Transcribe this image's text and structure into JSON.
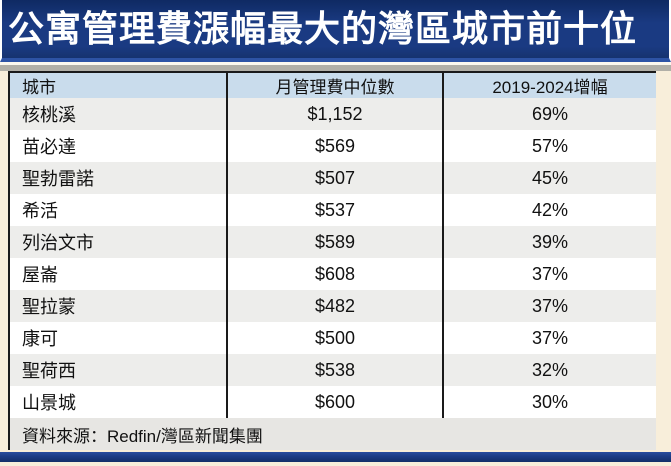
{
  "chart_data": {
    "type": "table",
    "title": "公寓管理費漲幅最大的灣區城市前十位",
    "columns": [
      "城市",
      "月管理費中位數",
      "2019-2024增幅"
    ],
    "rows": [
      {
        "city": "核桃溪",
        "fee": "$1,152",
        "increase": "69%"
      },
      {
        "city": "苗必達",
        "fee": "$569",
        "increase": "57%"
      },
      {
        "city": "聖勃雷諾",
        "fee": "$507",
        "increase": "45%"
      },
      {
        "city": "希活",
        "fee": "$537",
        "increase": "42%"
      },
      {
        "city": "列治文市",
        "fee": "$589",
        "increase": "39%"
      },
      {
        "city": "屋崙",
        "fee": "$608",
        "increase": "37%"
      },
      {
        "city": "聖拉蒙",
        "fee": "$482",
        "increase": "37%"
      },
      {
        "city": "康可",
        "fee": "$500",
        "increase": "37%"
      },
      {
        "city": "聖荷西",
        "fee": "$538",
        "increase": "32%"
      },
      {
        "city": "山景城",
        "fee": "$600",
        "increase": "30%"
      }
    ],
    "source": "資料來源：Redfin/灣區新聞集團",
    "layout": "header row light blue, data rows alternate gray/white, black column separators on first two columns only"
  },
  "colors": {
    "title_bar": "#1a3a82",
    "title_bar_highlight": "#2d53a5",
    "title_text": "#ffffff",
    "divider_band": "#b1afa7",
    "header_row": "#c9dcec",
    "row_alt": "#ededeb",
    "row": "#ffffff",
    "source_row": "#e7e6e3",
    "page_background": "#f8eeda",
    "bottom_bar": "#1d3c85",
    "table_border": "#1a1a1a",
    "text": "#111111"
  }
}
